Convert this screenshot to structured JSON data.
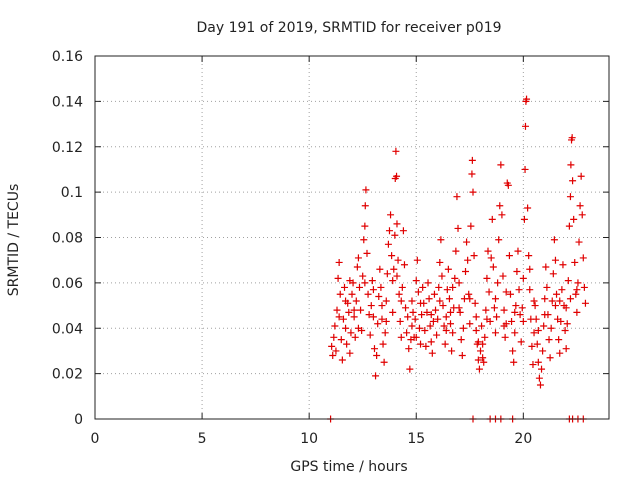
{
  "chart_data": {
    "type": "scatter",
    "title": "Day 191 of 2019, SRMTID for receiver p019",
    "xlabel": "GPS time / hours",
    "ylabel": "SRMTID / TECUs",
    "xlim": [
      0,
      24
    ],
    "ylim": [
      0,
      0.16
    ],
    "xticks": [
      0,
      5,
      10,
      15,
      20
    ],
    "yticks": [
      0,
      0.02,
      0.04,
      0.06,
      0.08,
      0.1,
      0.12,
      0.14,
      0.16
    ],
    "xtick_labels": [
      "0",
      "5",
      "10",
      "15",
      "20"
    ],
    "ytick_labels": [
      "0",
      "0.02",
      "0.04",
      "0.06",
      "0.08",
      "0.1",
      "0.12",
      "0.14",
      "0.16"
    ],
    "grid": true,
    "marker": "+",
    "color": "#e00000",
    "series": [
      {
        "name": "SRMTID",
        "points": [
          [
            11.05,
            0.032
          ],
          [
            11.1,
            0.028
          ],
          [
            11.15,
            0.036
          ],
          [
            11.2,
            0.041
          ],
          [
            11.25,
            0.03
          ],
          [
            11.3,
            0.048
          ],
          [
            11.35,
            0.062
          ],
          [
            11.4,
            0.069
          ],
          [
            11.45,
            0.055
          ],
          [
            11.5,
            0.035
          ],
          [
            11.55,
            0.026
          ],
          [
            11.6,
            0.044
          ],
          [
            11.65,
            0.058
          ],
          [
            11.7,
            0.04
          ],
          [
            11.75,
            0.033
          ],
          [
            11.8,
            0.051
          ],
          [
            11.85,
            0.047
          ],
          [
            11.9,
            0.029
          ],
          [
            11.95,
            0.038
          ],
          [
            12.0,
            0.055
          ],
          [
            12.05,
            0.06
          ],
          [
            12.1,
            0.045
          ],
          [
            12.15,
            0.036
          ],
          [
            12.2,
            0.052
          ],
          [
            12.25,
            0.067
          ],
          [
            12.3,
            0.071
          ],
          [
            12.35,
            0.058
          ],
          [
            12.4,
            0.048
          ],
          [
            12.45,
            0.039
          ],
          [
            12.5,
            0.063
          ],
          [
            12.55,
            0.079
          ],
          [
            12.6,
            0.085
          ],
          [
            12.62,
            0.094
          ],
          [
            12.65,
            0.101
          ],
          [
            12.7,
            0.073
          ],
          [
            12.75,
            0.055
          ],
          [
            12.8,
            0.046
          ],
          [
            12.85,
            0.037
          ],
          [
            12.9,
            0.05
          ],
          [
            12.95,
            0.061
          ],
          [
            13.0,
            0.045
          ],
          [
            13.05,
            0.031
          ],
          [
            13.1,
            0.019
          ],
          [
            13.15,
            0.028
          ],
          [
            13.2,
            0.042
          ],
          [
            13.25,
            0.054
          ],
          [
            13.3,
            0.066
          ],
          [
            13.35,
            0.058
          ],
          [
            13.4,
            0.044
          ],
          [
            13.45,
            0.033
          ],
          [
            13.5,
            0.025
          ],
          [
            13.55,
            0.038
          ],
          [
            13.6,
            0.052
          ],
          [
            13.65,
            0.064
          ],
          [
            13.7,
            0.077
          ],
          [
            13.75,
            0.083
          ],
          [
            13.8,
            0.09
          ],
          [
            13.85,
            0.072
          ],
          [
            13.9,
            0.061
          ],
          [
            13.95,
            0.066
          ],
          [
            14.0,
            0.081
          ],
          [
            14.02,
            0.106
          ],
          [
            14.05,
            0.118
          ],
          [
            14.08,
            0.107
          ],
          [
            14.1,
            0.086
          ],
          [
            14.15,
            0.07
          ],
          [
            14.2,
            0.055
          ],
          [
            14.25,
            0.043
          ],
          [
            14.3,
            0.036
          ],
          [
            14.35,
            0.058
          ],
          [
            14.4,
            0.083
          ],
          [
            14.45,
            0.068
          ],
          [
            14.5,
            0.049
          ],
          [
            14.55,
            0.038
          ],
          [
            14.6,
            0.045
          ],
          [
            14.65,
            0.031
          ],
          [
            14.7,
            0.022
          ],
          [
            14.75,
            0.035
          ],
          [
            14.8,
            0.052
          ],
          [
            14.85,
            0.047
          ],
          [
            14.9,
            0.036
          ],
          [
            14.95,
            0.044
          ],
          [
            15.0,
            0.061
          ],
          [
            15.05,
            0.07
          ],
          [
            15.1,
            0.056
          ],
          [
            15.15,
            0.04
          ],
          [
            15.2,
            0.033
          ],
          [
            15.25,
            0.046
          ],
          [
            15.3,
            0.058
          ],
          [
            15.35,
            0.051
          ],
          [
            15.4,
            0.039
          ],
          [
            15.45,
            0.032
          ],
          [
            15.5,
            0.047
          ],
          [
            15.55,
            0.06
          ],
          [
            15.6,
            0.053
          ],
          [
            15.65,
            0.041
          ],
          [
            15.7,
            0.034
          ],
          [
            15.75,
            0.029
          ],
          [
            15.8,
            0.043
          ],
          [
            15.85,
            0.055
          ],
          [
            15.9,
            0.048
          ],
          [
            15.95,
            0.037
          ],
          [
            16.0,
            0.044
          ],
          [
            16.05,
            0.058
          ],
          [
            16.1,
            0.069
          ],
          [
            16.15,
            0.079
          ],
          [
            16.2,
            0.063
          ],
          [
            16.25,
            0.05
          ],
          [
            16.3,
            0.041
          ],
          [
            16.35,
            0.033
          ],
          [
            16.4,
            0.045
          ],
          [
            16.45,
            0.057
          ],
          [
            16.5,
            0.066
          ],
          [
            16.55,
            0.053
          ],
          [
            16.6,
            0.042
          ],
          [
            16.65,
            0.03
          ],
          [
            16.7,
            0.038
          ],
          [
            16.75,
            0.049
          ],
          [
            16.8,
            0.062
          ],
          [
            16.85,
            0.074
          ],
          [
            16.9,
            0.098
          ],
          [
            16.95,
            0.084
          ],
          [
            17.0,
            0.06
          ],
          [
            17.05,
            0.047
          ],
          [
            17.1,
            0.035
          ],
          [
            17.15,
            0.028
          ],
          [
            17.2,
            0.04
          ],
          [
            17.25,
            0.053
          ],
          [
            17.3,
            0.065
          ],
          [
            17.35,
            0.078
          ],
          [
            17.4,
            0.07
          ],
          [
            17.45,
            0.055
          ],
          [
            17.5,
            0.042
          ],
          [
            17.55,
            0.085
          ],
          [
            17.6,
            0.108
          ],
          [
            17.62,
            0.114
          ],
          [
            17.65,
            0.1
          ],
          [
            17.7,
            0.072
          ],
          [
            17.75,
            0.051
          ],
          [
            17.8,
            0.039
          ],
          [
            17.85,
            0.033
          ],
          [
            17.9,
            0.026
          ],
          [
            17.95,
            0.022
          ],
          [
            18.0,
            0.03
          ],
          [
            18.05,
            0.041
          ],
          [
            18.1,
            0.033
          ],
          [
            18.15,
            0.025
          ],
          [
            18.2,
            0.036
          ],
          [
            18.25,
            0.048
          ],
          [
            18.3,
            0.062
          ],
          [
            18.35,
            0.074
          ],
          [
            18.4,
            0.056
          ],
          [
            18.45,
            0.043
          ],
          [
            18.5,
            0.071
          ],
          [
            18.55,
            0.088
          ],
          [
            18.6,
            0.067
          ],
          [
            18.65,
            0.049
          ],
          [
            18.7,
            0.038
          ],
          [
            18.75,
            0.045
          ],
          [
            18.8,
            0.06
          ],
          [
            18.85,
            0.079
          ],
          [
            18.9,
            0.094
          ],
          [
            18.95,
            0.112
          ],
          [
            19.0,
            0.09
          ],
          [
            19.05,
            0.063
          ],
          [
            19.1,
            0.048
          ],
          [
            19.15,
            0.036
          ],
          [
            19.2,
            0.042
          ],
          [
            19.25,
            0.104
          ],
          [
            19.3,
            0.103
          ],
          [
            19.35,
            0.072
          ],
          [
            19.4,
            0.055
          ],
          [
            19.45,
            0.043
          ],
          [
            19.5,
            0.03
          ],
          [
            19.55,
            0.025
          ],
          [
            19.6,
            0.038
          ],
          [
            19.65,
            0.05
          ],
          [
            19.7,
            0.065
          ],
          [
            19.75,
            0.074
          ],
          [
            19.8,
            0.057
          ],
          [
            19.85,
            0.046
          ],
          [
            19.9,
            0.034
          ],
          [
            19.95,
            0.049
          ],
          [
            20.0,
            0.062
          ],
          [
            20.05,
            0.088
          ],
          [
            20.08,
            0.11
          ],
          [
            20.1,
            0.129
          ],
          [
            20.12,
            0.14
          ],
          [
            20.15,
            0.141
          ],
          [
            20.2,
            0.093
          ],
          [
            20.25,
            0.072
          ],
          [
            20.3,
            0.057
          ],
          [
            20.35,
            0.044
          ],
          [
            20.4,
            0.032
          ],
          [
            20.45,
            0.024
          ],
          [
            20.5,
            0.038
          ],
          [
            20.55,
            0.05
          ],
          [
            20.6,
            0.044
          ],
          [
            20.65,
            0.033
          ],
          [
            20.7,
            0.025
          ],
          [
            20.75,
            0.018
          ],
          [
            20.8,
            0.015
          ],
          [
            20.85,
            0.022
          ],
          [
            20.9,
            0.03
          ],
          [
            20.95,
            0.041
          ],
          [
            21.0,
            0.053
          ],
          [
            21.05,
            0.067
          ],
          [
            21.1,
            0.058
          ],
          [
            21.15,
            0.046
          ],
          [
            21.2,
            0.035
          ],
          [
            21.25,
            0.027
          ],
          [
            21.3,
            0.04
          ],
          [
            21.35,
            0.052
          ],
          [
            21.4,
            0.064
          ],
          [
            21.45,
            0.079
          ],
          [
            21.5,
            0.07
          ],
          [
            21.55,
            0.055
          ],
          [
            21.6,
            0.044
          ],
          [
            21.65,
            0.035
          ],
          [
            21.7,
            0.029
          ],
          [
            21.75,
            0.043
          ],
          [
            21.8,
            0.057
          ],
          [
            21.85,
            0.068
          ],
          [
            21.9,
            0.05
          ],
          [
            21.95,
            0.039
          ],
          [
            22.0,
            0.031
          ],
          [
            22.05,
            0.042
          ],
          [
            22.1,
            0.061
          ],
          [
            22.15,
            0.085
          ],
          [
            22.2,
            0.098
          ],
          [
            22.22,
            0.112
          ],
          [
            22.25,
            0.123
          ],
          [
            22.28,
            0.124
          ],
          [
            22.3,
            0.105
          ],
          [
            22.35,
            0.088
          ],
          [
            22.4,
            0.069
          ],
          [
            22.45,
            0.055
          ],
          [
            22.5,
            0.047
          ],
          [
            22.55,
            0.06
          ],
          [
            22.6,
            0.078
          ],
          [
            22.65,
            0.094
          ],
          [
            22.7,
            0.107
          ],
          [
            22.75,
            0.09
          ],
          [
            22.8,
            0.071
          ],
          [
            22.85,
            0.058
          ],
          [
            22.9,
            0.051
          ],
          [
            11.4,
            0.045
          ],
          [
            11.7,
            0.052
          ],
          [
            12.1,
            0.048
          ],
          [
            12.6,
            0.06
          ],
          [
            13.0,
            0.057
          ],
          [
            13.4,
            0.05
          ],
          [
            13.9,
            0.047
          ],
          [
            14.3,
            0.052
          ],
          [
            14.8,
            0.041
          ],
          [
            15.2,
            0.051
          ],
          [
            15.7,
            0.046
          ],
          [
            16.1,
            0.052
          ],
          [
            16.6,
            0.047
          ],
          [
            17.0,
            0.049
          ],
          [
            17.5,
            0.053
          ],
          [
            17.9,
            0.034
          ],
          [
            18.3,
            0.044
          ],
          [
            18.7,
            0.053
          ],
          [
            19.1,
            0.041
          ],
          [
            19.6,
            0.047
          ],
          [
            20.0,
            0.043
          ],
          [
            20.5,
            0.052
          ],
          [
            21.0,
            0.046
          ],
          [
            21.5,
            0.05
          ],
          [
            22.0,
            0.049
          ],
          [
            22.5,
            0.057
          ],
          [
            12.3,
            0.04
          ],
          [
            13.6,
            0.043
          ],
          [
            15.0,
            0.036
          ],
          [
            16.4,
            0.039
          ],
          [
            17.8,
            0.045
          ],
          [
            19.2,
            0.056
          ],
          [
            20.7,
            0.039
          ],
          [
            22.2,
            0.053
          ],
          [
            11.9,
            0.061
          ],
          [
            14.1,
            0.063
          ],
          [
            16.7,
            0.058
          ],
          [
            18.1,
            0.027
          ],
          [
            20.3,
            0.066
          ],
          [
            21.7,
            0.052
          ],
          [
            11.0,
            0
          ],
          [
            17.65,
            0
          ],
          [
            18.45,
            0
          ],
          [
            18.7,
            0
          ],
          [
            18.95,
            0
          ],
          [
            19.5,
            0
          ],
          [
            22.15,
            0
          ],
          [
            22.3,
            0
          ],
          [
            22.55,
            0
          ],
          [
            22.8,
            0
          ]
        ]
      }
    ]
  }
}
